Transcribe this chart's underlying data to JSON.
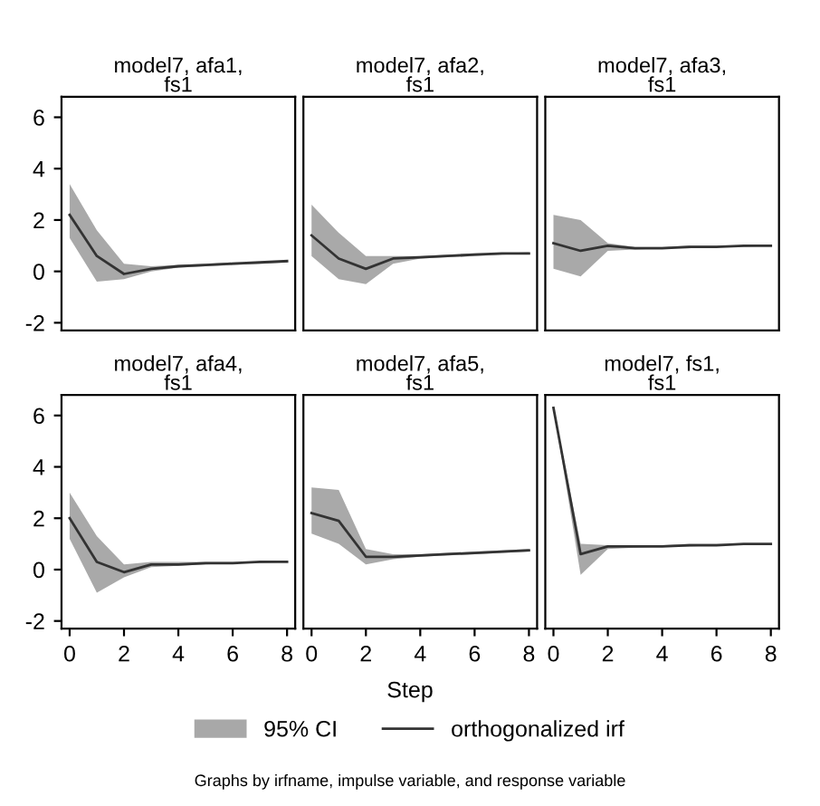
{
  "chart_data": [
    {
      "type": "line",
      "title": "model7, afa1,\nfs1",
      "x": [
        0,
        1,
        2,
        3,
        4,
        5,
        6,
        7,
        8
      ],
      "xlim": [
        -0.3,
        8.3
      ],
      "ylim": [
        -2.3,
        6.8
      ],
      "xticks": [
        0,
        2,
        4,
        6,
        8
      ],
      "yticks": [
        -2,
        0,
        2,
        4,
        6
      ],
      "tick_labels": "y",
      "series": [
        {
          "color": "#333333",
          "values": [
            2.2,
            0.6,
            -0.1,
            0.1,
            0.2,
            0.25,
            0.3,
            0.35,
            0.4
          ],
          "lower": [
            1.3,
            -0.4,
            -0.3,
            0.0,
            0.15,
            0.2,
            0.25,
            0.3,
            0.35
          ],
          "upper": [
            3.4,
            1.6,
            0.3,
            0.2,
            0.25,
            0.3,
            0.35,
            0.35,
            0.4
          ]
        }
      ]
    },
    {
      "type": "line",
      "title": "model7, afa2,\nfs1",
      "x": [
        0,
        1,
        2,
        3,
        4,
        5,
        6,
        7,
        8
      ],
      "xlim": [
        -0.3,
        8.3
      ],
      "ylim": [
        -2.3,
        6.8
      ],
      "xticks": [
        0,
        2,
        4,
        6,
        8
      ],
      "yticks": [
        -2,
        0,
        2,
        4,
        6
      ],
      "tick_labels": false,
      "series": [
        {
          "color": "#333333",
          "values": [
            1.4,
            0.5,
            0.1,
            0.5,
            0.55,
            0.6,
            0.65,
            0.7,
            0.7
          ],
          "lower": [
            0.6,
            -0.3,
            -0.5,
            0.3,
            0.5,
            0.55,
            0.6,
            0.65,
            0.7
          ],
          "upper": [
            2.6,
            1.5,
            0.6,
            0.6,
            0.6,
            0.65,
            0.7,
            0.7,
            0.75
          ]
        }
      ]
    },
    {
      "type": "line",
      "title": "model7, afa3,\nfs1",
      "x": [
        0,
        1,
        2,
        3,
        4,
        5,
        6,
        7,
        8
      ],
      "xlim": [
        -0.3,
        8.3
      ],
      "ylim": [
        -2.3,
        6.8
      ],
      "xticks": [
        0,
        2,
        4,
        6,
        8
      ],
      "yticks": [
        -2,
        0,
        2,
        4,
        6
      ],
      "tick_labels": false,
      "series": [
        {
          "color": "#333333",
          "values": [
            1.1,
            0.8,
            1.0,
            0.9,
            0.9,
            0.95,
            0.95,
            1.0,
            1.0
          ],
          "lower": [
            0.1,
            -0.2,
            0.8,
            0.85,
            0.9,
            0.9,
            0.95,
            0.95,
            1.0
          ],
          "upper": [
            2.2,
            2.0,
            1.1,
            0.95,
            0.95,
            1.0,
            1.0,
            1.0,
            1.0
          ]
        }
      ]
    },
    {
      "type": "line",
      "title": "model7, afa4,\nfs1",
      "x": [
        0,
        1,
        2,
        3,
        4,
        5,
        6,
        7,
        8
      ],
      "xlim": [
        -0.3,
        8.3
      ],
      "ylim": [
        -2.3,
        6.8
      ],
      "xticks": [
        0,
        2,
        4,
        6,
        8
      ],
      "yticks": [
        -2,
        0,
        2,
        4,
        6
      ],
      "series": [
        {
          "color": "#333333",
          "values": [
            2.0,
            0.3,
            -0.1,
            0.2,
            0.2,
            0.25,
            0.25,
            0.3,
            0.3
          ],
          "lower": [
            1.2,
            -0.9,
            -0.3,
            0.1,
            0.15,
            0.2,
            0.25,
            0.25,
            0.3
          ],
          "upper": [
            3.0,
            1.3,
            0.2,
            0.3,
            0.3,
            0.3,
            0.3,
            0.3,
            0.35
          ]
        }
      ]
    },
    {
      "type": "line",
      "title": "model7, afa5,\nfs1",
      "xlabel": "Step",
      "legend": "bottom",
      "annotations": [
        "95% CI",
        "Graphs by irfname, impulse variable, and response variable"
      ],
      "x": [
        0,
        1,
        2,
        3,
        4,
        5,
        6,
        7,
        8
      ],
      "xlim": [
        -0.3,
        8.3
      ],
      "ylim": [
        -2.3,
        6.8
      ],
      "xticks": [
        0,
        2,
        4,
        6,
        8
      ],
      "yticks": [
        -2,
        0,
        2,
        4,
        6
      ],
      "tick_labels": "x",
      "series": [
        {
          "name": "orthogonalized irf",
          "color": "#333333",
          "values": [
            2.2,
            1.9,
            0.5,
            0.5,
            0.55,
            0.6,
            0.65,
            0.7,
            0.75
          ],
          "lower": [
            1.4,
            1.0,
            0.2,
            0.4,
            0.5,
            0.55,
            0.6,
            0.65,
            0.7
          ],
          "upper": [
            3.2,
            3.1,
            0.8,
            0.6,
            0.6,
            0.65,
            0.7,
            0.75,
            0.8
          ]
        }
      ]
    },
    {
      "type": "line",
      "title": "model7, fs1,\nfs1",
      "x": [
        0,
        1,
        2,
        3,
        4,
        5,
        6,
        7,
        8
      ],
      "xlim": [
        -0.3,
        8.3
      ],
      "ylim": [
        -2.3,
        6.8
      ],
      "xticks": [
        0,
        2,
        4,
        6,
        8
      ],
      "yticks": [
        -2,
        0,
        2,
        4,
        6
      ],
      "tick_labels": "x",
      "series": [
        {
          "color": "#333333",
          "values": [
            6.3,
            0.6,
            0.9,
            0.9,
            0.9,
            0.95,
            0.95,
            1.0,
            1.0
          ],
          "lower": [
            6.3,
            -0.2,
            0.8,
            0.85,
            0.9,
            0.9,
            0.95,
            0.95,
            1.0
          ],
          "upper": [
            6.3,
            1.0,
            0.95,
            0.95,
            0.95,
            1.0,
            1.0,
            1.0,
            1.0
          ]
        }
      ]
    }
  ]
}
